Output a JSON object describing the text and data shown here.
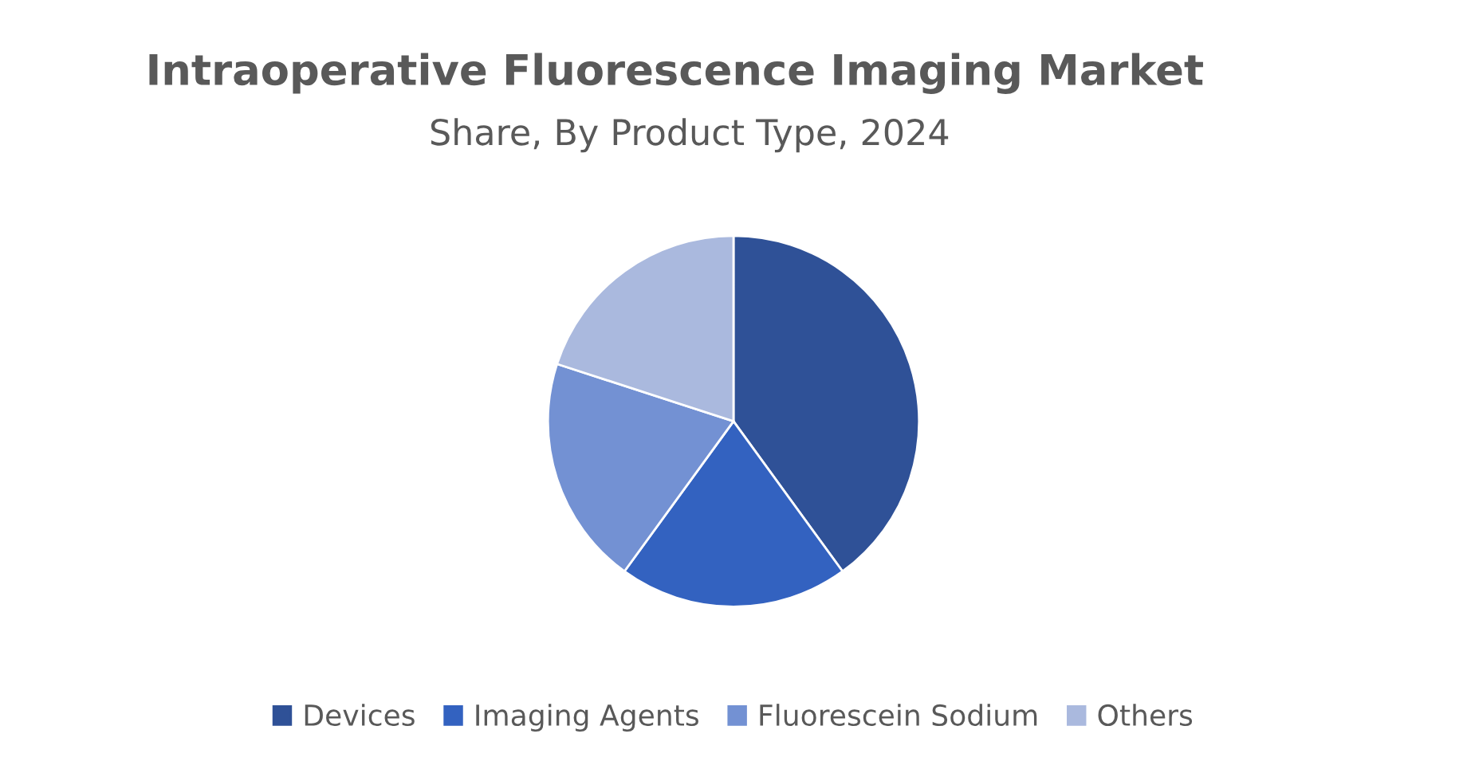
{
  "chart_data": {
    "type": "pie",
    "title": "Intraoperative Fluorescence Imaging Market",
    "subtitle": "Share, By Product Type, 2024",
    "categories": [
      "Devices",
      "Imaging Agents",
      "Fluorescein Sodium",
      "Others"
    ],
    "values": [
      40,
      20,
      20,
      20
    ],
    "colors": [
      "#2f5197",
      "#3362c0",
      "#7391d3",
      "#aab9de"
    ],
    "legend": "bottom"
  }
}
